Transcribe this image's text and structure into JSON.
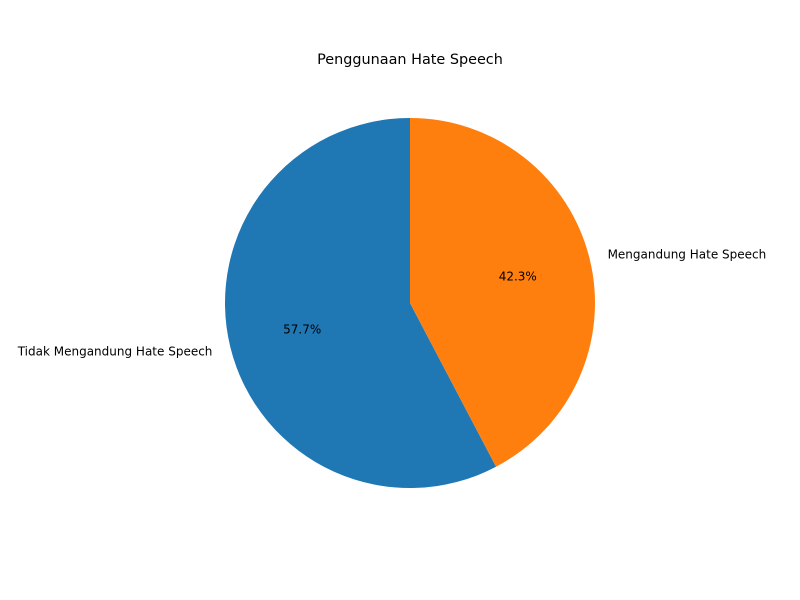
{
  "chart_data": {
    "type": "pie",
    "title": "Penggunaan Hate Speech",
    "slices": [
      {
        "label": "Tidak Mengandung Hate Speech",
        "value": 57.7,
        "percent_label": "57.7%",
        "color": "#1f77b4"
      },
      {
        "label": "Mengandung Hate Speech",
        "value": 42.3,
        "percent_label": "42.3%",
        "color": "#ff7f0e"
      }
    ],
    "start_angle": "12 o'clock",
    "direction": "counterclockwise",
    "legend": false
  }
}
